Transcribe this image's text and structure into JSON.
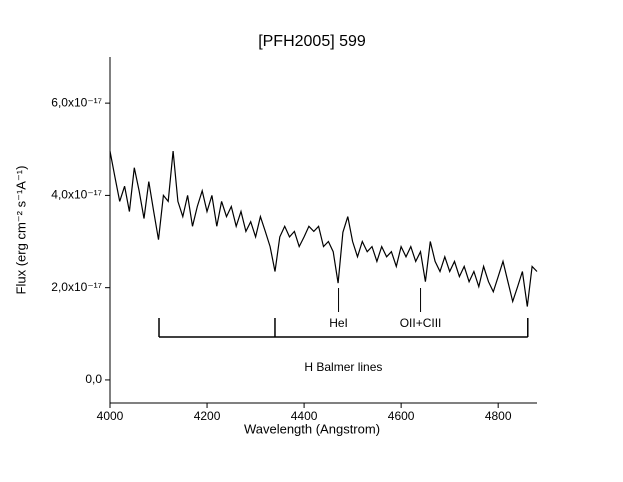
{
  "chart_data": {
    "type": "line",
    "title": "[PFH2005] 599",
    "x_label": "Wavelength (Angstrom)",
    "y_label": "Flux (erg cm⁻² s⁻¹A⁻¹)",
    "xlim": [
      4000,
      4880
    ],
    "ylim": [
      -0.5,
      7.0
    ],
    "xticks": [
      4000,
      4200,
      4400,
      4600,
      4800
    ],
    "yticks": [
      {
        "value": 0,
        "label": "0,0"
      },
      {
        "value": 2,
        "label": "2,0x10⁻¹⁷"
      },
      {
        "value": 4,
        "label": "4,0x10⁻¹⁷"
      },
      {
        "value": 6,
        "label": "6,0x10⁻¹⁷"
      }
    ],
    "series": [
      {
        "name": "[PFH2005] 599",
        "color": "#000000",
        "x": [
          4000,
          4010,
          4020,
          4030,
          4040,
          4050,
          4060,
          4070,
          4080,
          4090,
          4100,
          4110,
          4120,
          4130,
          4140,
          4150,
          4160,
          4170,
          4180,
          4190,
          4200,
          4210,
          4220,
          4230,
          4240,
          4250,
          4260,
          4270,
          4280,
          4290,
          4300,
          4310,
          4320,
          4330,
          4340,
          4350,
          4360,
          4370,
          4380,
          4390,
          4400,
          4410,
          4420,
          4430,
          4440,
          4450,
          4460,
          4470,
          4480,
          4490,
          4500,
          4510,
          4520,
          4530,
          4540,
          4550,
          4560,
          4570,
          4580,
          4590,
          4600,
          4610,
          4620,
          4630,
          4640,
          4650,
          4660,
          4670,
          4680,
          4690,
          4700,
          4710,
          4720,
          4730,
          4740,
          4750,
          4760,
          4770,
          4780,
          4790,
          4800,
          4810,
          4820,
          4830,
          4840,
          4850,
          4860,
          4870,
          4880
        ],
        "values": [
          4.96,
          4.4,
          3.87,
          4.2,
          3.65,
          4.6,
          4.1,
          3.5,
          4.3,
          3.65,
          3.04,
          4.0,
          3.87,
          4.96,
          3.87,
          3.54,
          4.0,
          3.33,
          3.76,
          4.1,
          3.65,
          4.0,
          3.33,
          3.87,
          3.54,
          3.76,
          3.33,
          3.65,
          3.22,
          3.43,
          3.1,
          3.54,
          3.22,
          2.89,
          2.35,
          3.1,
          3.33,
          3.1,
          3.22,
          2.89,
          3.1,
          3.33,
          3.22,
          3.33,
          2.89,
          3.0,
          2.78,
          2.1,
          3.2,
          3.54,
          3.0,
          2.67,
          3.0,
          2.78,
          2.89,
          2.57,
          2.89,
          2.67,
          2.78,
          2.46,
          2.89,
          2.67,
          2.89,
          2.57,
          2.78,
          2.13,
          3.0,
          2.57,
          2.35,
          2.67,
          2.35,
          2.57,
          2.24,
          2.46,
          2.13,
          2.35,
          2.02,
          2.46,
          2.13,
          1.91,
          2.24,
          2.57,
          2.13,
          1.7,
          2.02,
          2.35,
          1.59,
          2.46,
          2.35
        ]
      }
    ],
    "annotations": [
      {
        "text": "HeI",
        "x": 4471
      },
      {
        "text": "OII+CIII",
        "x": 4640
      },
      {
        "text": "H Balmer lines",
        "x": [
          4101,
          4340,
          4861
        ]
      }
    ]
  }
}
